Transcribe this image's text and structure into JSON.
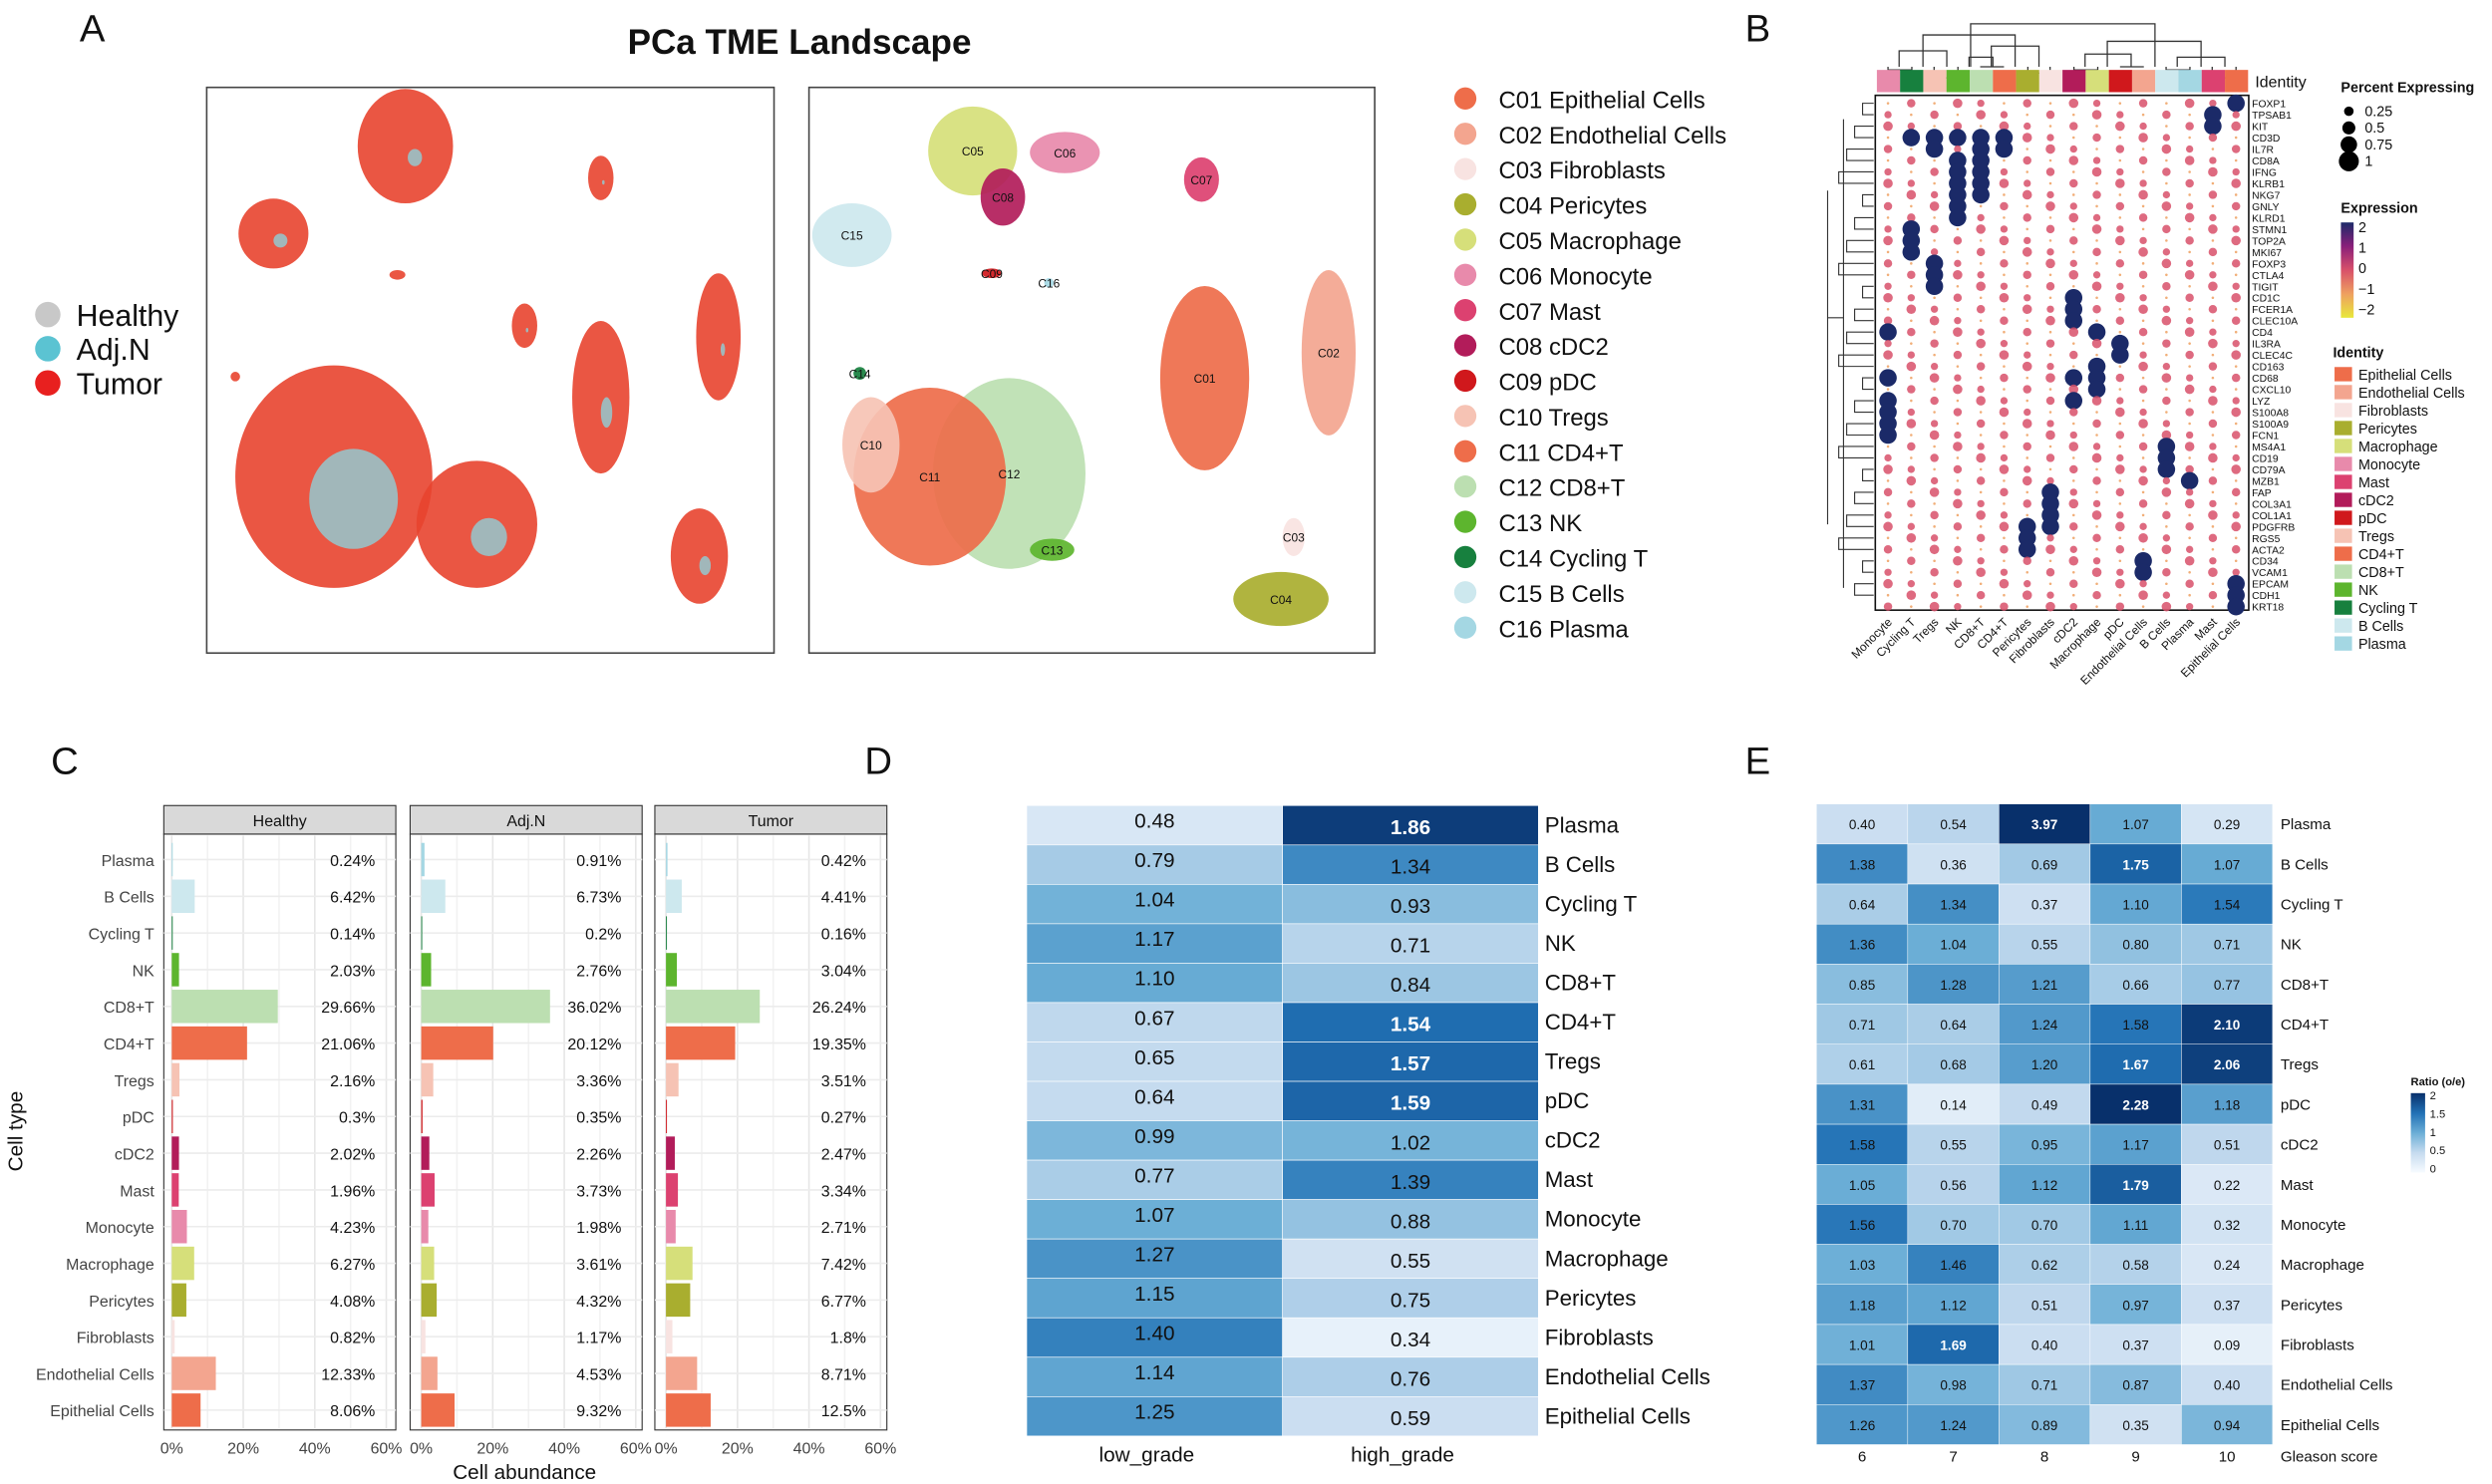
{
  "title": "PCa TME Landscape",
  "panel_labels": {
    "a": "A",
    "b": "B",
    "c": "C",
    "d": "D",
    "e": "E"
  },
  "panel_a": {
    "condition_legend": [
      {
        "label": "Healthy",
        "color": "#c8c8c8"
      },
      {
        "label": "Adj.N",
        "color": "#5bc3d2"
      },
      {
        "label": "Tumor",
        "color": "#e8201f"
      }
    ],
    "clusters": [
      {
        "id": "C01",
        "name": "Epithelial Cells",
        "label": "C01 Epithelial Cells",
        "color": "#ee6d4a"
      },
      {
        "id": "C02",
        "name": "Endothelial Cells",
        "label": "C02 Endothelial Cells",
        "color": "#f3a58f"
      },
      {
        "id": "C03",
        "name": "Fibroblasts",
        "label": "C03 Fibroblasts",
        "color": "#f8e3e1"
      },
      {
        "id": "C04",
        "name": "Pericytes",
        "label": "C04 Pericytes",
        "color": "#a9ae2f"
      },
      {
        "id": "C05",
        "name": "Macrophage",
        "label": "C05 Macrophage",
        "color": "#d6df7a"
      },
      {
        "id": "C06",
        "name": "Monocyte",
        "label": "C06 Monocyte",
        "color": "#e88aab"
      },
      {
        "id": "C07",
        "name": "Mast",
        "label": "C07 Mast",
        "color": "#dc4170"
      },
      {
        "id": "C08",
        "name": "cDC2",
        "label": "C08 cDC2",
        "color": "#b21c5a"
      },
      {
        "id": "C09",
        "name": "pDC",
        "label": "C09 pDC",
        "color": "#d0181c"
      },
      {
        "id": "C10",
        "name": "Tregs",
        "label": "C10 Tregs",
        "color": "#f6c3b4"
      },
      {
        "id": "C11",
        "name": "CD4+T",
        "label": "C11 CD4+T",
        "color": "#ee6d4a"
      },
      {
        "id": "C12",
        "name": "CD8+T",
        "label": "C12 CD8+T",
        "color": "#bcdfb1"
      },
      {
        "id": "C13",
        "name": "NK",
        "label": "C13 NK",
        "color": "#5db52e"
      },
      {
        "id": "C14",
        "name": "Cycling T",
        "label": "C14 Cycling T",
        "color": "#17803e"
      },
      {
        "id": "C15",
        "name": "B Cells",
        "label": "C15 B Cells",
        "color": "#cde8ee"
      },
      {
        "id": "C16",
        "name": "Plasma",
        "label": "C16 Plasma",
        "color": "#a4d7e3"
      }
    ]
  },
  "chart_data": [
    {
      "panel": "B",
      "type": "dotplot",
      "identity_title": "Identity",
      "percent_title": "Percent Expressing",
      "percent_ticks": [
        "0.25",
        "0.5",
        "0.75",
        "1"
      ],
      "expression_title": "Expression",
      "expression_ticks": [
        "2",
        "1",
        "0",
        "−2",
        "−1"
      ],
      "expression_ticks_ordered": [
        "2",
        "1",
        "0",
        "−1",
        "−2"
      ],
      "identity_legend_title": "Identity",
      "columns": [
        "Monocyte",
        "Cycling T",
        "Tregs",
        "NK",
        "CD8+T",
        "CD4+T",
        "Pericytes",
        "Fibroblasts",
        "cDC2",
        "Macrophage",
        "pDC",
        "Endothelial Cells",
        "B Cells",
        "Plasma",
        "Mast",
        "Epithelial Cells"
      ],
      "genes": [
        "FOXP1",
        "TPSAB1",
        "KIT",
        "CD3D",
        "IL7R",
        "CD8A",
        "IFNG",
        "KLRB1",
        "NKG7",
        "GNLY",
        "KLRD1",
        "STMN1",
        "TOP2A",
        "MKI67",
        "FOXP3",
        "CTLA4",
        "TIGIT",
        "CD1C",
        "FCER1A",
        "CLEC10A",
        "CD4",
        "IL3RA",
        "CLEC4C",
        "CD163",
        "CD68",
        "CXCL10",
        "LYZ",
        "S100A8",
        "S100A9",
        "FCN1",
        "MS4A1",
        "CD19",
        "CD79A",
        "MZB1",
        "FAP",
        "COL3A1",
        "COL1A1",
        "PDGFRB",
        "RGS5",
        "ACTA2",
        "CD34",
        "VCAM1",
        "EPCAM",
        "CDH1",
        "KRT18"
      ],
      "identity_legend": [
        "Epithelial Cells",
        "Endothelial Cells",
        "Fibroblasts",
        "Pericytes",
        "Macrophage",
        "Monocyte",
        "Mast",
        "cDC2",
        "pDC",
        "Tregs",
        "CD4+T",
        "CD8+T",
        "NK",
        "Cycling T",
        "B Cells",
        "Plasma"
      ],
      "high_expression": {
        "FOXP1": [
          "Epithelial Cells"
        ],
        "TPSAB1": [
          "Mast"
        ],
        "KIT": [
          "Mast"
        ],
        "CD3D": [
          "Cycling T",
          "Tregs",
          "CD8+T",
          "CD4+T",
          "NK"
        ],
        "IL7R": [
          "Tregs",
          "CD8+T",
          "CD4+T"
        ],
        "CD8A": [
          "CD8+T",
          "NK"
        ],
        "IFNG": [
          "CD8+T",
          "NK"
        ],
        "KLRB1": [
          "NK",
          "CD8+T"
        ],
        "NKG7": [
          "NK",
          "CD8+T"
        ],
        "GNLY": [
          "NK"
        ],
        "KLRD1": [
          "NK"
        ],
        "STMN1": [
          "Cycling T"
        ],
        "TOP2A": [
          "Cycling T"
        ],
        "MKI67": [
          "Cycling T"
        ],
        "FOXP3": [
          "Tregs"
        ],
        "CTLA4": [
          "Tregs"
        ],
        "TIGIT": [
          "Tregs"
        ],
        "CD1C": [
          "cDC2"
        ],
        "FCER1A": [
          "cDC2"
        ],
        "CLEC10A": [
          "cDC2"
        ],
        "CD4": [
          "Macrophage",
          "Monocyte"
        ],
        "IL3RA": [
          "pDC"
        ],
        "CLEC4C": [
          "pDC"
        ],
        "CD163": [
          "Macrophage"
        ],
        "CD68": [
          "Macrophage",
          "Monocyte",
          "cDC2"
        ],
        "CXCL10": [
          "Macrophage"
        ],
        "LYZ": [
          "Monocyte",
          "cDC2"
        ],
        "S100A8": [
          "Monocyte"
        ],
        "S100A9": [
          "Monocyte"
        ],
        "FCN1": [
          "Monocyte"
        ],
        "MS4A1": [
          "B Cells"
        ],
        "CD19": [
          "B Cells"
        ],
        "CD79A": [
          "B Cells"
        ],
        "MZB1": [
          "Plasma"
        ],
        "FAP": [
          "Fibroblasts"
        ],
        "COL3A1": [
          "Fibroblasts"
        ],
        "COL1A1": [
          "Fibroblasts"
        ],
        "PDGFRB": [
          "Pericytes",
          "Fibroblasts"
        ],
        "RGS5": [
          "Pericytes"
        ],
        "ACTA2": [
          "Pericytes"
        ],
        "CD34": [
          "Endothelial Cells"
        ],
        "VCAM1": [
          "Endothelial Cells"
        ],
        "EPCAM": [
          "Epithelial Cells"
        ],
        "CDH1": [
          "Epithelial Cells"
        ],
        "KRT18": [
          "Epithelial Cells"
        ]
      }
    },
    {
      "panel": "C",
      "type": "bar",
      "xlabel": "Cell abundance",
      "ylabel": "Cell type",
      "xlim": [
        0,
        60
      ],
      "xticks": [
        "0%",
        "20%",
        "40%",
        "60%"
      ],
      "categories": [
        "Plasma",
        "B Cells",
        "Cycling T",
        "NK",
        "CD8+T",
        "CD4+T",
        "Tregs",
        "pDC",
        "cDC2",
        "Mast",
        "Monocyte",
        "Macrophage",
        "Pericytes",
        "Fibroblasts",
        "Endothelial Cells",
        "Epithelial Cells"
      ],
      "series": [
        {
          "name": "Healthy",
          "values": [
            0.24,
            6.42,
            0.14,
            2.03,
            29.66,
            21.06,
            2.16,
            0.3,
            2.02,
            1.96,
            4.23,
            6.27,
            4.08,
            0.82,
            12.33,
            8.06
          ],
          "labels": [
            "0.24%",
            "6.42%",
            "0.14%",
            "2.03%",
            "29.66%",
            "21.06%",
            "2.16%",
            "0.3%",
            "2.02%",
            "1.96%",
            "4.23%",
            "6.27%",
            "4.08%",
            "0.82%",
            "12.33%",
            "8.06%"
          ]
        },
        {
          "name": "Adj.N",
          "values": [
            0.91,
            6.73,
            0.2,
            2.76,
            36.02,
            20.12,
            3.36,
            0.35,
            2.26,
            3.73,
            1.98,
            3.61,
            4.32,
            1.17,
            4.53,
            9.32
          ],
          "labels": [
            "0.91%",
            "6.73%",
            "0.2%",
            "2.76%",
            "36.02%",
            "20.12%",
            "3.36%",
            "0.35%",
            "2.26%",
            "3.73%",
            "1.98%",
            "3.61%",
            "4.32%",
            "1.17%",
            "4.53%",
            "9.32%"
          ]
        },
        {
          "name": "Tumor",
          "values": [
            0.42,
            4.41,
            0.16,
            3.04,
            26.24,
            19.35,
            3.51,
            0.27,
            2.47,
            3.34,
            2.71,
            7.42,
            6.77,
            1.8,
            8.71,
            12.5
          ],
          "labels": [
            "0.42%",
            "4.41%",
            "0.16%",
            "3.04%",
            "26.24%",
            "19.35%",
            "3.51%",
            "0.27%",
            "2.47%",
            "3.34%",
            "2.71%",
            "7.42%",
            "6.77%",
            "1.8%",
            "8.71%",
            "12.5%"
          ]
        }
      ]
    },
    {
      "panel": "D",
      "type": "heatmap",
      "columns": [
        "low_grade",
        "high_grade"
      ],
      "rows": [
        "Plasma",
        "B Cells",
        "Cycling T",
        "NK",
        "CD8+T",
        "CD4+T",
        "Tregs",
        "pDC",
        "cDC2",
        "Mast",
        "Monocyte",
        "Macrophage",
        "Pericytes",
        "Fibroblasts",
        "Endothelial Cells",
        "Epithelial Cells"
      ],
      "values": [
        [
          0.48,
          1.86
        ],
        [
          0.79,
          1.34
        ],
        [
          1.04,
          0.93
        ],
        [
          1.17,
          0.71
        ],
        [
          1.1,
          0.84
        ],
        [
          0.67,
          1.54
        ],
        [
          0.65,
          1.57
        ],
        [
          0.64,
          1.59
        ],
        [
          0.99,
          1.02
        ],
        [
          0.77,
          1.39
        ],
        [
          1.07,
          0.88
        ],
        [
          1.27,
          0.55
        ],
        [
          1.15,
          0.75
        ],
        [
          1.4,
          0.34
        ],
        [
          1.14,
          0.76
        ],
        [
          1.25,
          0.59
        ]
      ]
    },
    {
      "panel": "E",
      "type": "heatmap",
      "xlabel": "Gleason score",
      "columns": [
        "6",
        "7",
        "8",
        "9",
        "10"
      ],
      "rows": [
        "Plasma",
        "B Cells",
        "Cycling T",
        "NK",
        "CD8+T",
        "CD4+T",
        "Tregs",
        "pDC",
        "cDC2",
        "Mast",
        "Monocyte",
        "Macrophage",
        "Pericytes",
        "Fibroblasts",
        "Endothelial Cells",
        "Epithelial Cells"
      ],
      "values": [
        [
          0.4,
          0.54,
          3.97,
          1.07,
          0.29
        ],
        [
          1.38,
          0.36,
          0.69,
          1.75,
          1.07
        ],
        [
          0.64,
          1.34,
          0.37,
          1.1,
          1.54
        ],
        [
          1.36,
          1.04,
          0.55,
          0.8,
          0.71
        ],
        [
          0.85,
          1.28,
          1.21,
          0.66,
          0.77
        ],
        [
          0.71,
          0.64,
          1.24,
          1.58,
          2.1
        ],
        [
          0.61,
          0.68,
          1.2,
          1.67,
          2.06
        ],
        [
          1.31,
          0.14,
          0.49,
          2.28,
          1.18
        ],
        [
          1.58,
          0.55,
          0.95,
          1.17,
          0.51
        ],
        [
          1.05,
          0.56,
          1.12,
          1.79,
          0.22
        ],
        [
          1.56,
          0.7,
          0.7,
          1.11,
          0.32
        ],
        [
          1.03,
          1.46,
          0.62,
          0.58,
          0.24
        ],
        [
          1.18,
          1.12,
          0.51,
          0.97,
          0.37
        ],
        [
          1.01,
          1.69,
          0.4,
          0.37,
          0.09
        ],
        [
          1.37,
          0.98,
          0.71,
          0.87,
          0.4
        ],
        [
          1.26,
          1.24,
          0.89,
          0.35,
          0.94
        ]
      ],
      "legend_title": "Ratio (o/e)",
      "legend_ticks": [
        "2",
        "1.5",
        "1",
        "0.5",
        "0"
      ]
    }
  ]
}
